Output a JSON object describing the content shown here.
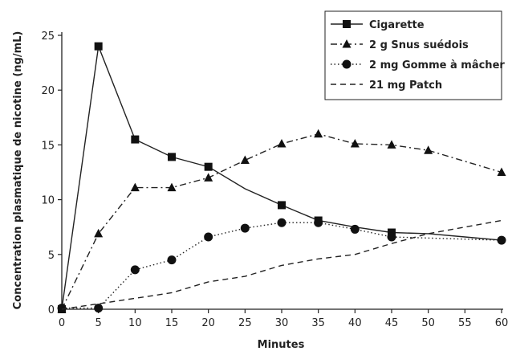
{
  "chart_data": {
    "type": "line",
    "xlabel": "Minutes",
    "ylabel": "Concentration plasmatique de nicotine (ng/mL)",
    "xlim": [
      0,
      60
    ],
    "ylim": [
      0,
      25
    ],
    "x_ticks": [
      0,
      5,
      10,
      15,
      20,
      25,
      30,
      35,
      40,
      45,
      50,
      55,
      60
    ],
    "y_ticks": [
      0,
      5,
      10,
      15,
      20,
      25
    ],
    "grid": false,
    "legend_position": "top-right",
    "series": [
      {
        "name": "Cigarette",
        "marker": "square",
        "line_style": "solid",
        "x": [
          0,
          5,
          10,
          15,
          20,
          25,
          30,
          35,
          40,
          45,
          50,
          55,
          60
        ],
        "y": [
          0,
          24,
          15.5,
          13.9,
          13,
          11,
          9.5,
          8.1,
          7.5,
          7,
          6.9,
          6.6,
          6.3
        ],
        "marker_x": [
          0,
          5,
          10,
          15,
          20,
          30,
          35,
          45
        ]
      },
      {
        "name": "2 g Snus suédois",
        "marker": "triangle",
        "line_style": "dashdot",
        "x": [
          0,
          5,
          10,
          15,
          20,
          25,
          30,
          35,
          40,
          45,
          50,
          60
        ],
        "y": [
          0,
          6.9,
          11.1,
          11.1,
          12,
          13.6,
          15.1,
          16,
          15.1,
          15,
          14.5,
          12.5
        ]
      },
      {
        "name": "2 mg Gomme à mâcher",
        "marker": "circle",
        "line_style": "dotted",
        "x": [
          0,
          5,
          10,
          15,
          20,
          25,
          30,
          35,
          40,
          45,
          60
        ],
        "y": [
          0.1,
          0.1,
          3.6,
          4.5,
          6.6,
          7.4,
          7.9,
          7.9,
          7.3,
          6.6,
          6.3
        ]
      },
      {
        "name": "21 mg Patch",
        "marker": "none",
        "line_style": "dashed",
        "x": [
          0,
          10,
          15,
          20,
          25,
          30,
          35,
          40,
          45,
          50,
          55,
          60
        ],
        "y": [
          0,
          1,
          1.5,
          2.5,
          3,
          4,
          4.6,
          5,
          6,
          6.9,
          7.5,
          8.1
        ]
      }
    ]
  }
}
